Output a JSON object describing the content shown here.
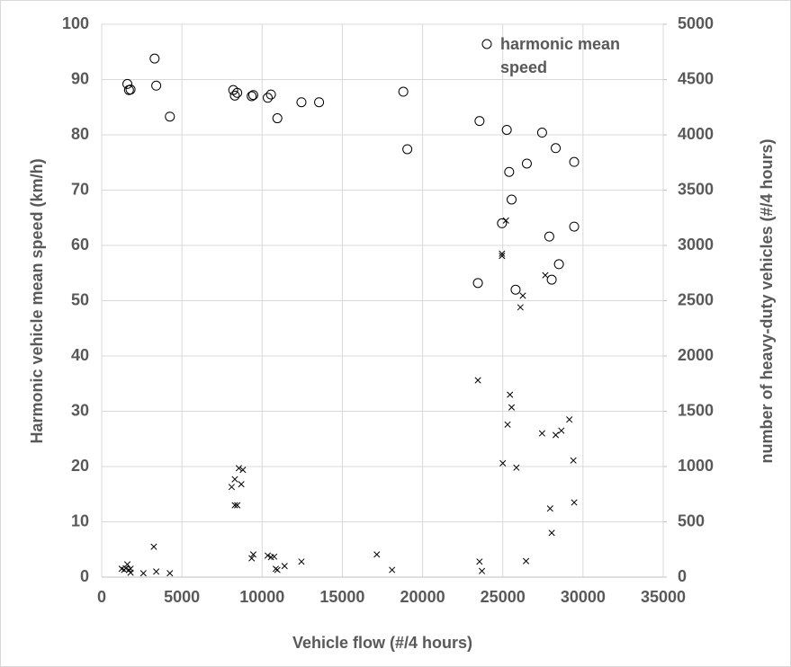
{
  "chart_data": {
    "type": "scatter",
    "xlabel": "Vehicle flow (#/4 hours)",
    "ylabel": "Harmonic vehicle mean speed (km/h)",
    "y2label": "number of heavy-duty vehicles (#/4 hours)",
    "xlim": [
      0,
      35000
    ],
    "xticks": [
      0,
      5000,
      10000,
      15000,
      20000,
      25000,
      30000,
      35000
    ],
    "ylim": [
      0,
      100
    ],
    "yticks": [
      0,
      10,
      20,
      30,
      40,
      50,
      60,
      70,
      80,
      90,
      100
    ],
    "y2lim": [
      0,
      5000
    ],
    "y2ticks": [
      0,
      500,
      1000,
      1500,
      2000,
      2500,
      3000,
      3500,
      4000,
      4500,
      5000
    ],
    "grid": true,
    "legend": "upper right",
    "series": [
      {
        "name": "harmonic mean speed",
        "color": "#000000",
        "marker": "o",
        "x": [
          1600,
          1700,
          1800,
          3300,
          3400,
          4250,
          8200,
          8300,
          8450,
          9350,
          9450,
          10350,
          10550,
          10950,
          12450,
          13550,
          18800,
          19050,
          23550,
          23450,
          24950,
          25250,
          25400,
          25550,
          25800,
          26500,
          27450,
          27900,
          28050,
          28300,
          28500,
          29450,
          29450
        ],
        "values": [
          89.2,
          88.1,
          88.2,
          93.8,
          88.9,
          83.3,
          88.1,
          87.1,
          87.6,
          87.0,
          87.2,
          86.7,
          87.3,
          83.0,
          85.9,
          85.9,
          87.8,
          77.4,
          82.5,
          53.2,
          64.0,
          80.9,
          73.3,
          68.3,
          52.0,
          74.8,
          80.4,
          61.6,
          53.8,
          77.6,
          56.6,
          75.1,
          63.4
        ]
      },
      {
        "color": "#000000",
        "marker": "x",
        "axis": "y2",
        "x": [
          1250,
          1400,
          1500,
          1600,
          1700,
          1800,
          1800,
          2600,
          3250,
          3400,
          4250,
          8100,
          8300,
          8550,
          8800,
          8700,
          8300,
          8450,
          9350,
          9450,
          10350,
          10550,
          10750,
          10950,
          10850,
          11400,
          12450,
          17150,
          18100,
          23450,
          23550,
          23700,
          25000,
          24950,
          24950,
          25200,
          25300,
          25450,
          25550,
          25850,
          26100,
          26250,
          26450,
          27450,
          27650,
          27950,
          28050,
          28300,
          28650,
          29150,
          29400,
          29450
        ],
        "values": [
          75,
          65,
          80,
          115,
          65,
          40,
          75,
          35,
          275,
          50,
          35,
          815,
          885,
          985,
          970,
          840,
          650,
          650,
          170,
          205,
          195,
          180,
          185,
          65,
          75,
          100,
          140,
          205,
          65,
          1780,
          140,
          55,
          1030,
          2925,
          2905,
          3225,
          1380,
          1650,
          1535,
          990,
          2440,
          2545,
          145,
          1300,
          2730,
          620,
          400,
          1285,
          1325,
          1425,
          1055,
          675
        ]
      }
    ]
  }
}
